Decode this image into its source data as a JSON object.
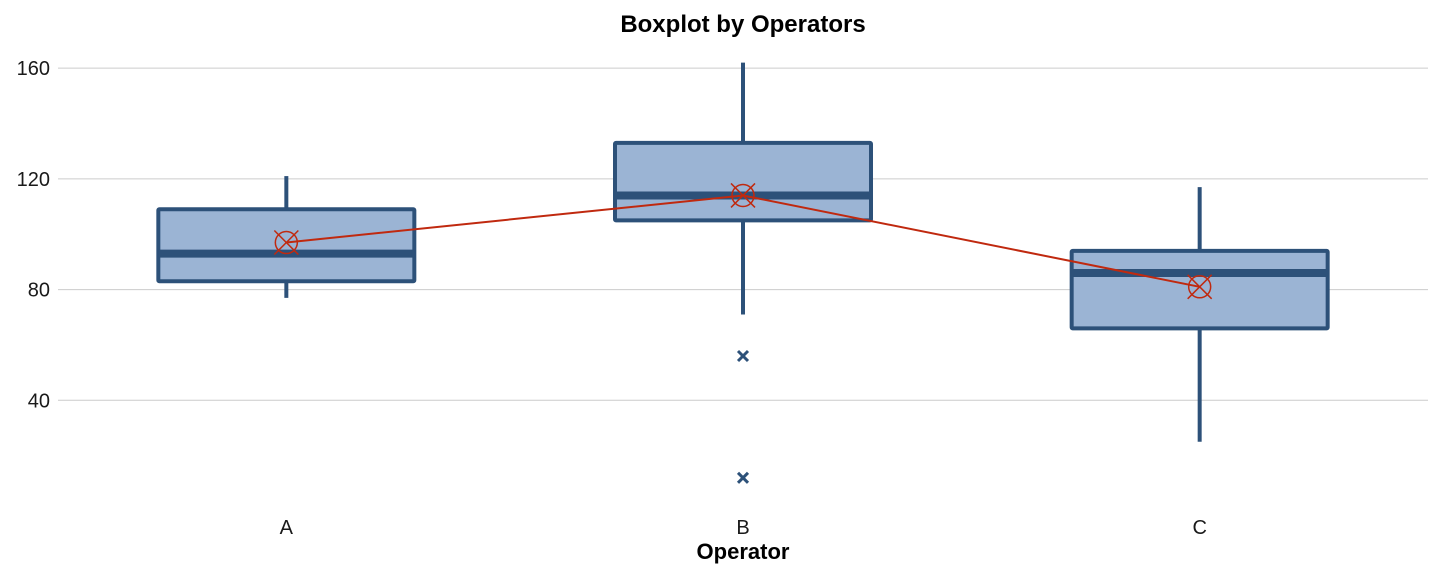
{
  "chart_data": {
    "type": "boxplot",
    "title": "Boxplot by Operators",
    "xlabel": "Operator",
    "ylabel": "",
    "ylim": [
      0,
      168
    ],
    "y_ticks": [
      40,
      80,
      120,
      160
    ],
    "grid": "horizontal",
    "categories": [
      "A",
      "B",
      "C"
    ],
    "boxes": [
      {
        "category": "A",
        "whisker_low": 77,
        "q1": 83,
        "median": 93,
        "q3": 109,
        "whisker_high": 121,
        "mean": 97,
        "outliers": []
      },
      {
        "category": "B",
        "whisker_low": 71,
        "q1": 105,
        "median": 114,
        "q3": 133,
        "whisker_high": 162,
        "mean": 114,
        "outliers": [
          56,
          12
        ]
      },
      {
        "category": "C",
        "whisker_low": 25,
        "q1": 66,
        "median": 86,
        "q3": 94,
        "whisker_high": 117,
        "mean": 81,
        "outliers": []
      }
    ],
    "mean_line": true,
    "colors": {
      "box_fill": "#9bb4d4",
      "box_stroke": "#2d5179",
      "mean": "#c0290f",
      "outlier": "#2d5179"
    }
  }
}
